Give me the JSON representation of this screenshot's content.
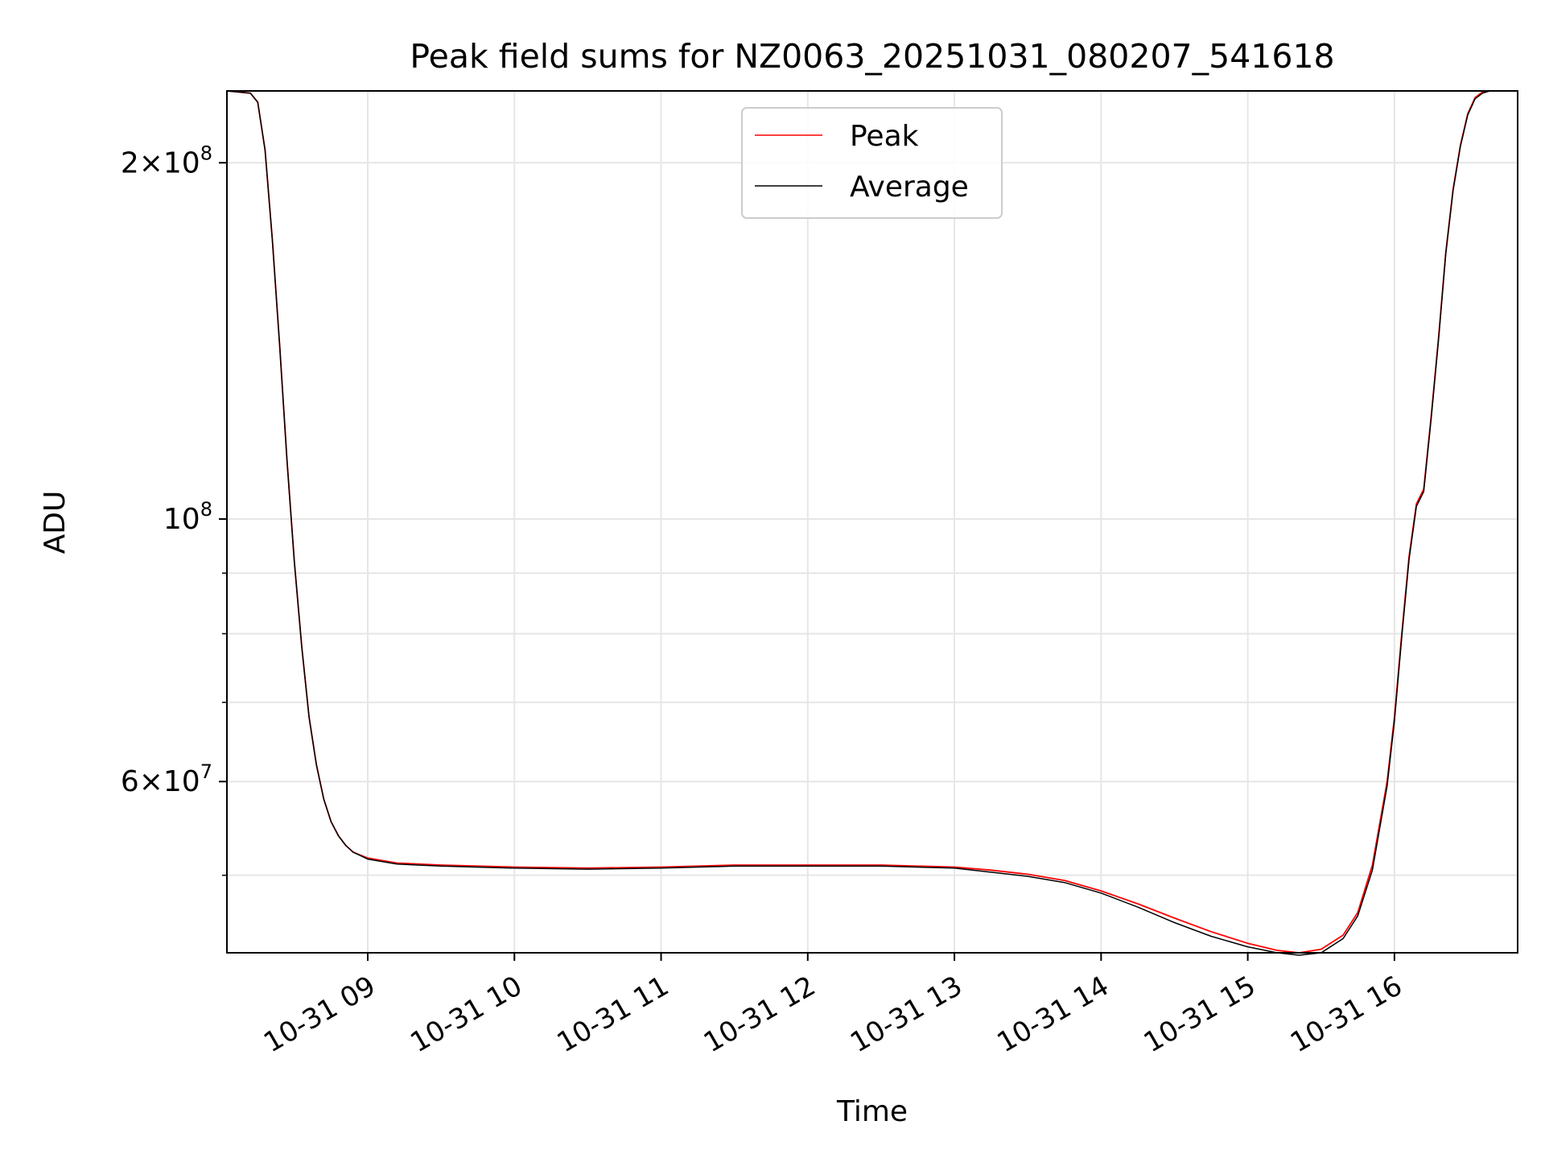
{
  "colors": {
    "peak": "#ff0000",
    "average": "#000000",
    "grid": "#e6e6e6",
    "axes": "#000000",
    "background": "#ffffff"
  },
  "chart_data": {
    "type": "line",
    "title": "Peak field sums for NZ0063_20251031_080207_541618",
    "xlabel": "Time",
    "ylabel": "ADU",
    "yscale": "log",
    "ylim": [
      43000000,
      230000000
    ],
    "xlim_hours": [
      8.04,
      16.84
    ],
    "grid": true,
    "legend_position": "upper-center",
    "x_ticks": [
      {
        "value": 9,
        "label": "10-31 09"
      },
      {
        "value": 10,
        "label": "10-31 10"
      },
      {
        "value": 11,
        "label": "10-31 11"
      },
      {
        "value": 12,
        "label": "10-31 12"
      },
      {
        "value": 13,
        "label": "10-31 13"
      },
      {
        "value": 14,
        "label": "10-31 14"
      },
      {
        "value": 15,
        "label": "10-31 15"
      },
      {
        "value": 16,
        "label": "10-31 16"
      }
    ],
    "y_major_ticks": [
      {
        "value": 60000000,
        "mantissa": "6",
        "exponent": "7"
      },
      {
        "value": 100000000,
        "mantissa": "",
        "exponent": "8"
      },
      {
        "value": 200000000,
        "mantissa": "2",
        "exponent": "8"
      }
    ],
    "y_minor_ticks": [
      50000000,
      70000000,
      80000000,
      90000000
    ],
    "series": [
      {
        "name": "Peak",
        "x_hours": [
          8.04,
          8.2,
          8.25,
          8.3,
          8.35,
          8.4,
          8.45,
          8.5,
          8.55,
          8.6,
          8.65,
          8.7,
          8.75,
          8.8,
          8.85,
          8.9,
          9.0,
          9.2,
          9.5,
          10.0,
          10.5,
          11.0,
          11.5,
          12.0,
          12.5,
          13.0,
          13.25,
          13.5,
          13.75,
          14.0,
          14.25,
          14.5,
          14.75,
          15.0,
          15.2,
          15.35,
          15.5,
          15.65,
          15.75,
          15.85,
          15.95,
          16.0,
          16.05,
          16.1,
          16.15,
          16.2,
          16.25,
          16.3,
          16.35,
          16.4,
          16.45,
          16.5,
          16.55,
          16.6,
          16.65,
          16.7,
          16.84
        ],
        "values": [
          230000000,
          229000000,
          225000000,
          205000000,
          172000000,
          140000000,
          112000000,
          92000000,
          78000000,
          68000000,
          62000000,
          58000000,
          55500000,
          54000000,
          53000000,
          52300000,
          51700000,
          51200000,
          51000000,
          50800000,
          50700000,
          50800000,
          51000000,
          51000000,
          51000000,
          50800000,
          50500000,
          50100000,
          49500000,
          48500000,
          47300000,
          46000000,
          44800000,
          43800000,
          43200000,
          43000000,
          43300000,
          44500000,
          46500000,
          51000000,
          60000000,
          68000000,
          80000000,
          93000000,
          103000000,
          106000000,
          122000000,
          142000000,
          168000000,
          190000000,
          207000000,
          220000000,
          227000000,
          229500000,
          230000000,
          230000000,
          230000000
        ]
      },
      {
        "name": "Average",
        "x_hours": [
          8.04,
          8.2,
          8.25,
          8.3,
          8.35,
          8.4,
          8.45,
          8.5,
          8.55,
          8.6,
          8.65,
          8.7,
          8.75,
          8.8,
          8.85,
          8.9,
          9.0,
          9.2,
          9.5,
          10.0,
          10.5,
          11.0,
          11.5,
          12.0,
          12.5,
          13.0,
          13.25,
          13.5,
          13.75,
          14.0,
          14.25,
          14.5,
          14.75,
          15.0,
          15.2,
          15.35,
          15.5,
          15.65,
          15.75,
          15.85,
          15.95,
          16.0,
          16.05,
          16.1,
          16.15,
          16.2,
          16.25,
          16.3,
          16.35,
          16.4,
          16.45,
          16.5,
          16.55,
          16.6,
          16.65,
          16.7,
          16.84
        ],
        "values": [
          230000000,
          229000000,
          225000000,
          205000000,
          172000000,
          140000000,
          112000000,
          92000000,
          78000000,
          68000000,
          62000000,
          58000000,
          55500000,
          54000000,
          53000000,
          52300000,
          51600000,
          51100000,
          50900000,
          50700000,
          50600000,
          50700000,
          50900000,
          50900000,
          50900000,
          50700000,
          50300000,
          49900000,
          49300000,
          48300000,
          47000000,
          45600000,
          44400000,
          43500000,
          43000000,
          42800000,
          43000000,
          44200000,
          46200000,
          50500000,
          59500000,
          67500000,
          79500000,
          92500000,
          102500000,
          105500000,
          121500000,
          141500000,
          167500000,
          189500000,
          206500000,
          219500000,
          226500000,
          229000000,
          230000000,
          230000000,
          230000000
        ]
      }
    ],
    "legend": [
      {
        "name": "Peak",
        "color": "#ff0000"
      },
      {
        "name": "Average",
        "color": "#000000"
      }
    ]
  }
}
